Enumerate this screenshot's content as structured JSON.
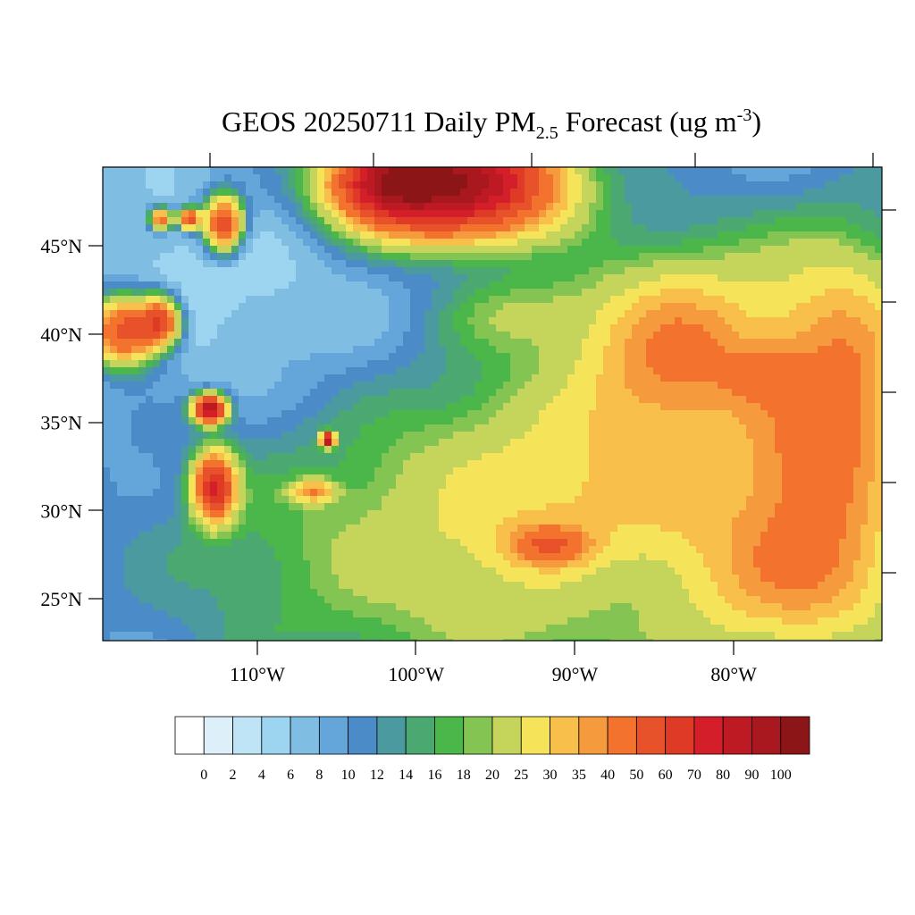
{
  "title": {
    "parts": [
      "GEOS 20250711 Daily PM",
      "2.5",
      " Forecast (ug m",
      "-3",
      ")"
    ]
  },
  "map": {
    "lat_labels": [
      "45°N",
      "40°N",
      "35°N",
      "30°N",
      "25°N"
    ],
    "lon_labels": [
      "110°W",
      "100°W",
      "90°W",
      "80°W"
    ]
  },
  "colorbar": {
    "levels": [
      0,
      2,
      4,
      6,
      8,
      10,
      12,
      14,
      16,
      18,
      20,
      25,
      30,
      35,
      40,
      50,
      60,
      70,
      80,
      90,
      100
    ],
    "colors": [
      "#ffffff",
      "#ddf0fa",
      "#bfe4f5",
      "#9dd5f0",
      "#80bde3",
      "#64a6d9",
      "#4a8bc8",
      "#4a9aa0",
      "#4aa870",
      "#4bb649",
      "#84c452",
      "#c5d45a",
      "#f5e45a",
      "#f8bf4a",
      "#f69a3e",
      "#f2722e",
      "#e8522a",
      "#df3a26",
      "#d41f2a",
      "#be1a24",
      "#a8181e",
      "#8c1518"
    ]
  }
}
